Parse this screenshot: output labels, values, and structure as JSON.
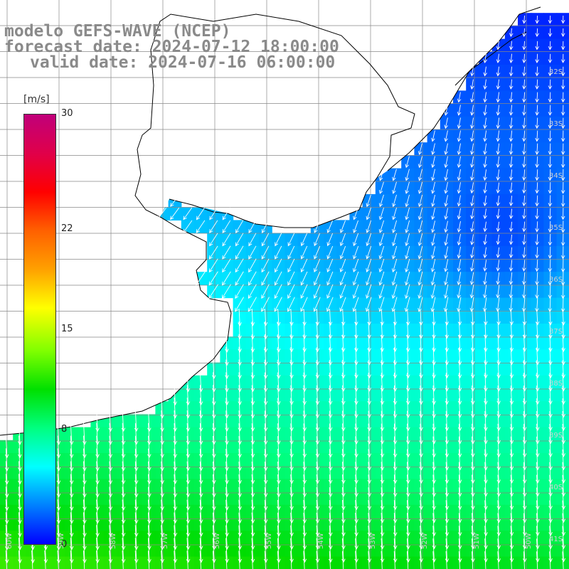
{
  "header": {
    "model": "modelo GEFS-WAVE (NCEP)",
    "forecast": "forecast date: 2024-07-12 18:00:00",
    "valid": "valid date: 2024-07-16 06:00:00"
  },
  "colorbar": {
    "unit": "[m/s]",
    "ticks": [
      {
        "label": "30",
        "value": 30
      },
      {
        "label": "22",
        "value": 22
      },
      {
        "label": "15",
        "value": 15
      },
      {
        "label": "8",
        "value": 8
      },
      {
        "label": "0",
        "value": 0
      }
    ],
    "colors": [
      "#0000ff",
      "#0080ff",
      "#00ffff",
      "#00ff80",
      "#00e000",
      "#80ff00",
      "#ffff00",
      "#ffa000",
      "#ff6000",
      "#ff0000",
      "#e0004a",
      "#c0007a"
    ]
  },
  "map": {
    "land_color": "#ffffff",
    "coast_color": "#000000",
    "grid_color": "#888888",
    "arrow_color": "#ffffff",
    "lat_labels": [
      "32S",
      "33S",
      "34S",
      "35S",
      "36S",
      "37S",
      "38S",
      "39S",
      "40S",
      "41S"
    ],
    "lon_labels": [
      "60W",
      "59W",
      "58W",
      "57W",
      "56W",
      "55W",
      "54W",
      "53W",
      "52W",
      "51W",
      "50W"
    ]
  }
}
